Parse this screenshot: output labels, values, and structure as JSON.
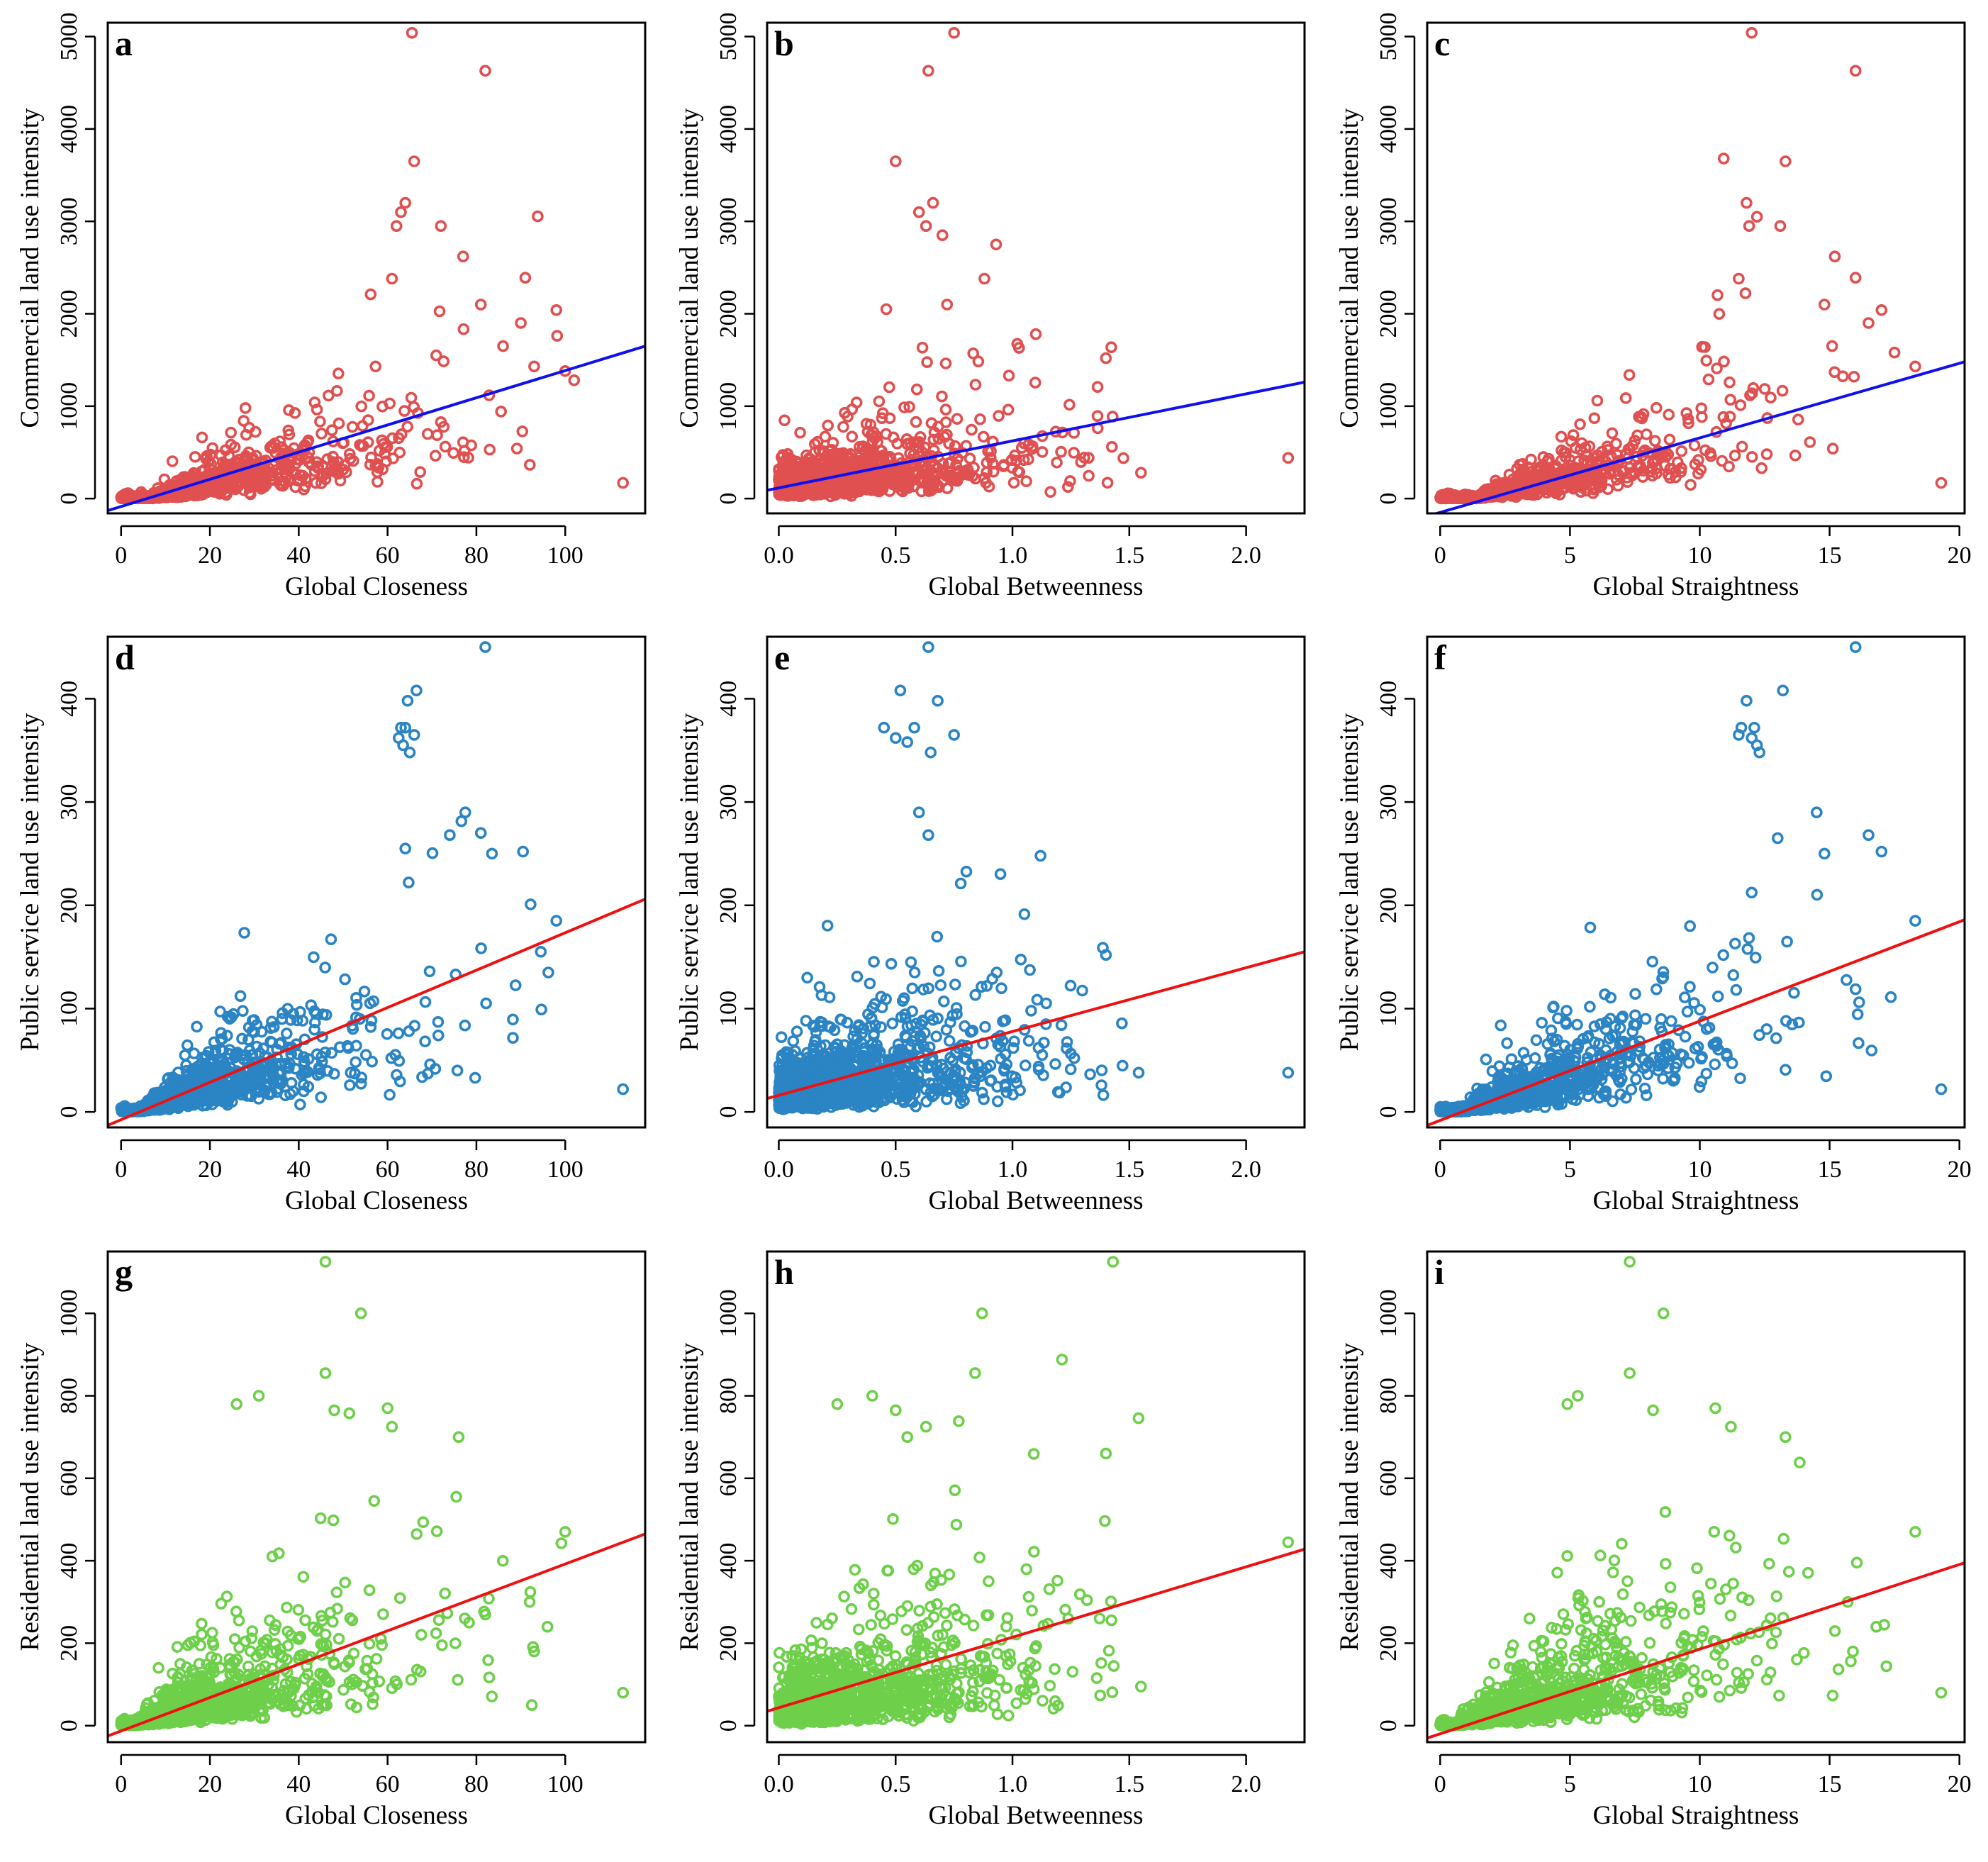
{
  "colors": {
    "commercial": "#e05050",
    "public": "#2b84c4",
    "residential": "#6ed04a",
    "blue_line": "#1010ee",
    "red_line": "#ee1111"
  },
  "chart_data": [
    {
      "panel": "a",
      "type": "scatter",
      "xlabel": "Global Closeness",
      "ylabel": "Commercial land use intensity",
      "xlim": [
        -3,
        118
      ],
      "ylim": [
        -160,
        5150
      ],
      "xticks": [
        0,
        20,
        40,
        60,
        80,
        100
      ],
      "xtick_labels": [
        "0",
        "20",
        "40",
        "60",
        "80",
        "100"
      ],
      "yticks": [
        0,
        1000,
        2000,
        3000,
        4000,
        5000
      ],
      "ytick_labels": [
        "0",
        "1000",
        "2000",
        "3000",
        "4000",
        "5000"
      ],
      "point_color": "#e05050",
      "line_color": "#1010ee",
      "fit_line": {
        "x": [
          -3,
          118
        ],
        "y": [
          -130,
          1650
        ]
      },
      "gen": {
        "n": 1100,
        "xmax": 100,
        "xscale": 17,
        "slope": 14.7,
        "intercept": -90,
        "noise": 0.85,
        "floor": 0,
        "seed": 11
      },
      "outliers": [
        [
          65.5,
          5040
        ],
        [
          82,
          4630
        ],
        [
          66,
          3650
        ],
        [
          64,
          3200
        ],
        [
          63,
          3100
        ],
        [
          62,
          2950
        ],
        [
          72,
          2950
        ],
        [
          77,
          2620
        ],
        [
          61,
          2380
        ],
        [
          91,
          2390
        ],
        [
          81,
          2100
        ],
        [
          98,
          2040
        ],
        [
          90,
          1900
        ],
        [
          86,
          1650
        ],
        [
          93,
          1430
        ],
        [
          100,
          1380
        ],
        [
          102,
          1280
        ],
        [
          113,
          170
        ],
        [
          83,
          530
        ],
        [
          77,
          610
        ]
      ]
    },
    {
      "panel": "b",
      "type": "scatter",
      "xlabel": "Global Betweenness",
      "ylabel": "Commercial land use intensity",
      "xlim": [
        -0.05,
        2.25
      ],
      "ylim": [
        -160,
        5150
      ],
      "xticks": [
        0,
        0.5,
        1.0,
        1.5,
        2.0
      ],
      "xtick_labels": [
        "0.0",
        "0.5",
        "1.0",
        "1.5",
        "2.0"
      ],
      "yticks": [
        0,
        1000,
        2000,
        3000,
        4000,
        5000
      ],
      "ytick_labels": [
        "0",
        "1000",
        "2000",
        "3000",
        "4000",
        "5000"
      ],
      "point_color": "#e05050",
      "line_color": "#1010ee",
      "fit_line": {
        "x": [
          -0.05,
          2.25
        ],
        "y": [
          90,
          1260
        ]
      },
      "gen": {
        "n": 1200,
        "xmax": 1.55,
        "xscale": 0.3,
        "slope": 450,
        "intercept": 150,
        "noise": 0.95,
        "floor": 0,
        "seed": 23
      },
      "outliers": [
        [
          0.75,
          5040
        ],
        [
          0.64,
          4630
        ],
        [
          0.5,
          3650
        ],
        [
          0.66,
          3200
        ],
        [
          0.6,
          3100
        ],
        [
          0.63,
          2950
        ],
        [
          0.7,
          2850
        ],
        [
          0.93,
          2750
        ],
        [
          0.88,
          2380
        ],
        [
          0.72,
          2100
        ],
        [
          0.46,
          2050
        ],
        [
          1.1,
          1780
        ],
        [
          2.18,
          440
        ],
        [
          1.55,
          280
        ],
        [
          1.4,
          1520
        ]
      ]
    },
    {
      "panel": "c",
      "type": "scatter",
      "xlabel": "Global Straightness",
      "ylabel": "Commercial land use intensity",
      "xlim": [
        -0.5,
        20.2
      ],
      "ylim": [
        -160,
        5150
      ],
      "xticks": [
        0,
        5,
        10,
        15,
        20
      ],
      "xtick_labels": [
        "0",
        "5",
        "10",
        "15",
        "20"
      ],
      "yticks": [
        0,
        1000,
        2000,
        3000,
        4000,
        5000
      ],
      "ytick_labels": [
        "0",
        "1000",
        "2000",
        "3000",
        "4000",
        "5000"
      ],
      "point_color": "#e05050",
      "line_color": "#1010ee",
      "fit_line": {
        "x": [
          -0.5,
          20.2
        ],
        "y": [
          -190,
          1480
        ]
      },
      "gen": {
        "n": 1100,
        "xmax": 17.5,
        "xscale": 3.2,
        "slope": 80,
        "intercept": -100,
        "noise": 0.85,
        "floor": 0,
        "seed": 37
      },
      "outliers": [
        [
          12,
          5040
        ],
        [
          16,
          4630
        ],
        [
          13.3,
          3650
        ],
        [
          11.8,
          3200
        ],
        [
          12.2,
          3050
        ],
        [
          11.9,
          2950
        ],
        [
          13.1,
          2950
        ],
        [
          15.2,
          2620
        ],
        [
          11.5,
          2380
        ],
        [
          16,
          2390
        ],
        [
          14.8,
          2100
        ],
        [
          17,
          2040
        ],
        [
          16.5,
          1900
        ],
        [
          15.1,
          1650
        ],
        [
          18.3,
          1430
        ],
        [
          19.3,
          170
        ],
        [
          17.5,
          1580
        ]
      ]
    },
    {
      "panel": "d",
      "type": "scatter",
      "xlabel": "Global Closeness",
      "ylabel": "Public service land use intensity",
      "xlim": [
        -3,
        118
      ],
      "ylim": [
        -15,
        460
      ],
      "xticks": [
        0,
        20,
        40,
        60,
        80,
        100
      ],
      "xtick_labels": [
        "0",
        "20",
        "40",
        "60",
        "80",
        "100"
      ],
      "yticks": [
        0,
        100,
        200,
        300,
        400
      ],
      "ytick_labels": [
        "0",
        "100",
        "200",
        "300",
        "400"
      ],
      "point_color": "#2b84c4",
      "line_color": "#ee1111",
      "fit_line": {
        "x": [
          -3,
          118
        ],
        "y": [
          -13,
          206
        ]
      },
      "gen": {
        "n": 1250,
        "xmax": 100,
        "xscale": 17,
        "slope": 1.8,
        "intercept": -6,
        "noise": 0.8,
        "floor": 0,
        "seed": 53
      },
      "outliers": [
        [
          82,
          450
        ],
        [
          66.5,
          408
        ],
        [
          64.5,
          398
        ],
        [
          63,
          372
        ],
        [
          64,
          372
        ],
        [
          66,
          365
        ],
        [
          62.5,
          362
        ],
        [
          63.5,
          355
        ],
        [
          65,
          348
        ],
        [
          77.5,
          290
        ],
        [
          74,
          268
        ],
        [
          81,
          270
        ],
        [
          64,
          255
        ],
        [
          83.5,
          250
        ],
        [
          90.5,
          252
        ],
        [
          113,
          22
        ],
        [
          98,
          185
        ],
        [
          94.5,
          155
        ]
      ]
    },
    {
      "panel": "e",
      "type": "scatter",
      "xlabel": "Global Betweenness",
      "ylabel": "Public service land use intensity",
      "xlim": [
        -0.05,
        2.25
      ],
      "ylim": [
        -15,
        460
      ],
      "xticks": [
        0,
        0.5,
        1.0,
        1.5,
        2.0
      ],
      "xtick_labels": [
        "0.0",
        "0.5",
        "1.0",
        "1.5",
        "2.0"
      ],
      "yticks": [
        0,
        100,
        200,
        300,
        400
      ],
      "ytick_labels": [
        "0",
        "100",
        "200",
        "300",
        "400"
      ],
      "point_color": "#2b84c4",
      "line_color": "#ee1111",
      "fit_line": {
        "x": [
          -0.05,
          2.25
        ],
        "y": [
          13,
          155
        ]
      },
      "gen": {
        "n": 1300,
        "xmax": 1.55,
        "xscale": 0.3,
        "slope": 55,
        "intercept": 20,
        "noise": 0.95,
        "floor": 0,
        "seed": 71
      },
      "outliers": [
        [
          0.64,
          450
        ],
        [
          0.52,
          408
        ],
        [
          0.68,
          398
        ],
        [
          0.45,
          372
        ],
        [
          0.58,
          372
        ],
        [
          0.75,
          365
        ],
        [
          0.5,
          362
        ],
        [
          0.55,
          358
        ],
        [
          0.65,
          348
        ],
        [
          0.6,
          290
        ],
        [
          0.64,
          268
        ],
        [
          1.12,
          248
        ],
        [
          2.18,
          38
        ],
        [
          1.54,
          38
        ],
        [
          1.4,
          152
        ]
      ]
    },
    {
      "panel": "f",
      "type": "scatter",
      "xlabel": "Global Straightness",
      "ylabel": "Public service  land use intensity",
      "xlim": [
        -0.5,
        20.2
      ],
      "ylim": [
        -15,
        460
      ],
      "xticks": [
        0,
        5,
        10,
        15,
        20
      ],
      "xtick_labels": [
        "0",
        "5",
        "10",
        "15",
        "20"
      ],
      "yticks": [
        0,
        100,
        200,
        300,
        400
      ],
      "ytick_labels": [
        "0",
        "100",
        "200",
        "300",
        "400"
      ],
      "point_color": "#2b84c4",
      "line_color": "#ee1111",
      "fit_line": {
        "x": [
          -0.5,
          20.2
        ],
        "y": [
          -13,
          186
        ]
      },
      "gen": {
        "n": 1250,
        "xmax": 17.5,
        "xscale": 3.2,
        "slope": 9.5,
        "intercept": -6,
        "noise": 0.8,
        "floor": 0,
        "seed": 89
      },
      "outliers": [
        [
          16,
          450
        ],
        [
          13.2,
          408
        ],
        [
          11.8,
          398
        ],
        [
          11.6,
          372
        ],
        [
          12.1,
          372
        ],
        [
          11.5,
          365
        ],
        [
          12,
          362
        ],
        [
          12.2,
          355
        ],
        [
          12.3,
          348
        ],
        [
          14.5,
          290
        ],
        [
          16.5,
          268
        ],
        [
          13,
          265
        ],
        [
          14.8,
          250
        ],
        [
          17,
          252
        ],
        [
          19.3,
          22
        ],
        [
          18.3,
          185
        ]
      ]
    },
    {
      "panel": "g",
      "type": "scatter",
      "xlabel": "Global Closeness",
      "ylabel": "Residential land use intensity",
      "xlim": [
        -3,
        118
      ],
      "ylim": [
        -40,
        1150
      ],
      "xticks": [
        0,
        20,
        40,
        60,
        80,
        100
      ],
      "xtick_labels": [
        "0",
        "20",
        "40",
        "60",
        "80",
        "100"
      ],
      "yticks": [
        0,
        200,
        400,
        600,
        800,
        1000
      ],
      "ytick_labels": [
        "0",
        "200",
        "400",
        "600",
        "800",
        "1000"
      ],
      "point_color": "#6ed04a",
      "line_color": "#ee1111",
      "fit_line": {
        "x": [
          -3,
          118
        ],
        "y": [
          -25,
          465
        ]
      },
      "gen": {
        "n": 1250,
        "xmax": 100,
        "xscale": 18,
        "slope": 4.2,
        "intercept": -10,
        "noise": 1.0,
        "floor": 0,
        "seed": 101
      },
      "outliers": [
        [
          46,
          1125
        ],
        [
          54,
          1000
        ],
        [
          46,
          855
        ],
        [
          31,
          800
        ],
        [
          26,
          780
        ],
        [
          48,
          765
        ],
        [
          60,
          770
        ],
        [
          61,
          725
        ],
        [
          76,
          700
        ],
        [
          113,
          80
        ],
        [
          100,
          470
        ],
        [
          92,
          300
        ],
        [
          96,
          240
        ],
        [
          93,
          180
        ]
      ]
    },
    {
      "panel": "h",
      "type": "scatter",
      "xlabel": "Global Betweenness",
      "ylabel": "Residential land use intensity",
      "xlim": [
        -0.05,
        2.25
      ],
      "ylim": [
        -40,
        1150
      ],
      "xticks": [
        0,
        0.5,
        1.0,
        1.5,
        2.0
      ],
      "xtick_labels": [
        "0.0",
        "0.5",
        "1.0",
        "1.5",
        "2.0"
      ],
      "yticks": [
        0,
        200,
        400,
        600,
        800,
        1000
      ],
      "ytick_labels": [
        "0",
        "200",
        "400",
        "600",
        "800",
        "1000"
      ],
      "point_color": "#6ed04a",
      "line_color": "#ee1111",
      "fit_line": {
        "x": [
          -0.05,
          2.25
        ],
        "y": [
          35,
          428
        ]
      },
      "gen": {
        "n": 1300,
        "xmax": 1.55,
        "xscale": 0.3,
        "slope": 150,
        "intercept": 40,
        "noise": 1.05,
        "floor": 0,
        "seed": 131
      },
      "outliers": [
        [
          1.43,
          1125
        ],
        [
          0.87,
          1000
        ],
        [
          0.84,
          855
        ],
        [
          0.4,
          800
        ],
        [
          0.25,
          780
        ],
        [
          0.5,
          765
        ],
        [
          0.63,
          725
        ],
        [
          0.55,
          700
        ],
        [
          2.18,
          445
        ],
        [
          1.55,
          95
        ],
        [
          1.4,
          660
        ]
      ]
    },
    {
      "panel": "i",
      "type": "scatter",
      "xlabel": "Global Straightness",
      "ylabel": "Residential  land use intensity",
      "xlim": [
        -0.5,
        20.2
      ],
      "ylim": [
        -40,
        1150
      ],
      "xticks": [
        0,
        5,
        10,
        15,
        20
      ],
      "xtick_labels": [
        "0",
        "5",
        "10",
        "15",
        "20"
      ],
      "yticks": [
        0,
        200,
        400,
        600,
        800,
        1000
      ],
      "ytick_labels": [
        "0",
        "200",
        "400",
        "600",
        "800",
        "1000"
      ],
      "point_color": "#6ed04a",
      "line_color": "#ee1111",
      "fit_line": {
        "x": [
          -0.5,
          20.2
        ],
        "y": [
          -30,
          395
        ]
      },
      "gen": {
        "n": 1250,
        "xmax": 17.5,
        "xscale": 3.4,
        "slope": 22,
        "intercept": -10,
        "noise": 1.0,
        "floor": 0,
        "seed": 151
      },
      "outliers": [
        [
          7.3,
          1125
        ],
        [
          8.6,
          1000
        ],
        [
          7.3,
          855
        ],
        [
          5.3,
          800
        ],
        [
          4.9,
          780
        ],
        [
          8.2,
          765
        ],
        [
          10.6,
          770
        ],
        [
          11.2,
          725
        ],
        [
          13.3,
          700
        ],
        [
          19.3,
          80
        ],
        [
          18.3,
          470
        ],
        [
          15.7,
          300
        ],
        [
          16.8,
          240
        ],
        [
          15.9,
          180
        ]
      ]
    }
  ]
}
